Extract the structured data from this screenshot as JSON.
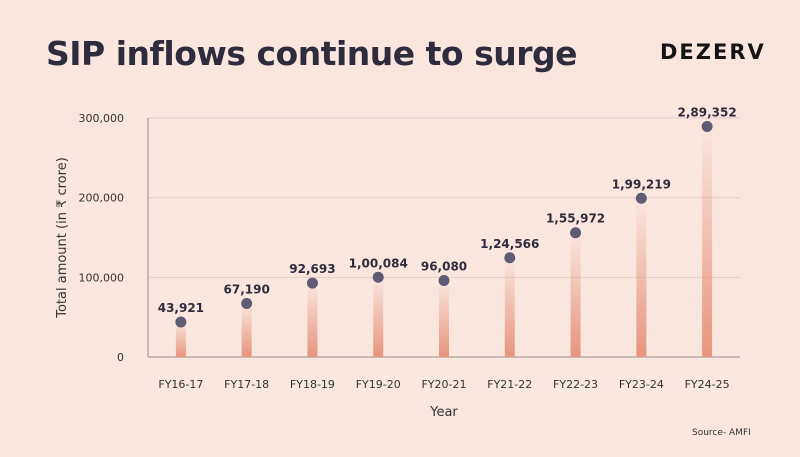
{
  "header": {
    "title": "SIP inflows continue to surge",
    "brand": "DEZERV"
  },
  "footer": {
    "source": "Source- AMFI"
  },
  "colors": {
    "background": "#f9e6df",
    "marker": "#5f5b74",
    "bar_base": "#e8947c"
  },
  "chart_data": {
    "type": "bar",
    "title": "SIP inflows continue to surge",
    "xlabel": "Year",
    "ylabel": "Total amount  (in ₹ crore)",
    "categories": [
      "FY16-17",
      "FY17-18",
      "FY18-19",
      "FY19-20",
      "FY20-21",
      "FY21-22",
      "FY22-23",
      "FY23-24",
      "FY24-25"
    ],
    "values": [
      43921,
      67190,
      92693,
      100084,
      96080,
      124566,
      155972,
      199219,
      289352
    ],
    "value_labels": [
      "43,921",
      "67,190",
      "92,693",
      "1,00,084",
      "96,080",
      "1,24,566",
      "1,55,972",
      "1,99,219",
      "2,89,352"
    ],
    "ylim": [
      0,
      300000
    ],
    "y_ticks": [
      0,
      100000,
      200000,
      300000
    ],
    "y_tick_labels": [
      "0",
      "100,000",
      "200,000",
      "300,000"
    ],
    "grid": true,
    "legend": "none"
  }
}
